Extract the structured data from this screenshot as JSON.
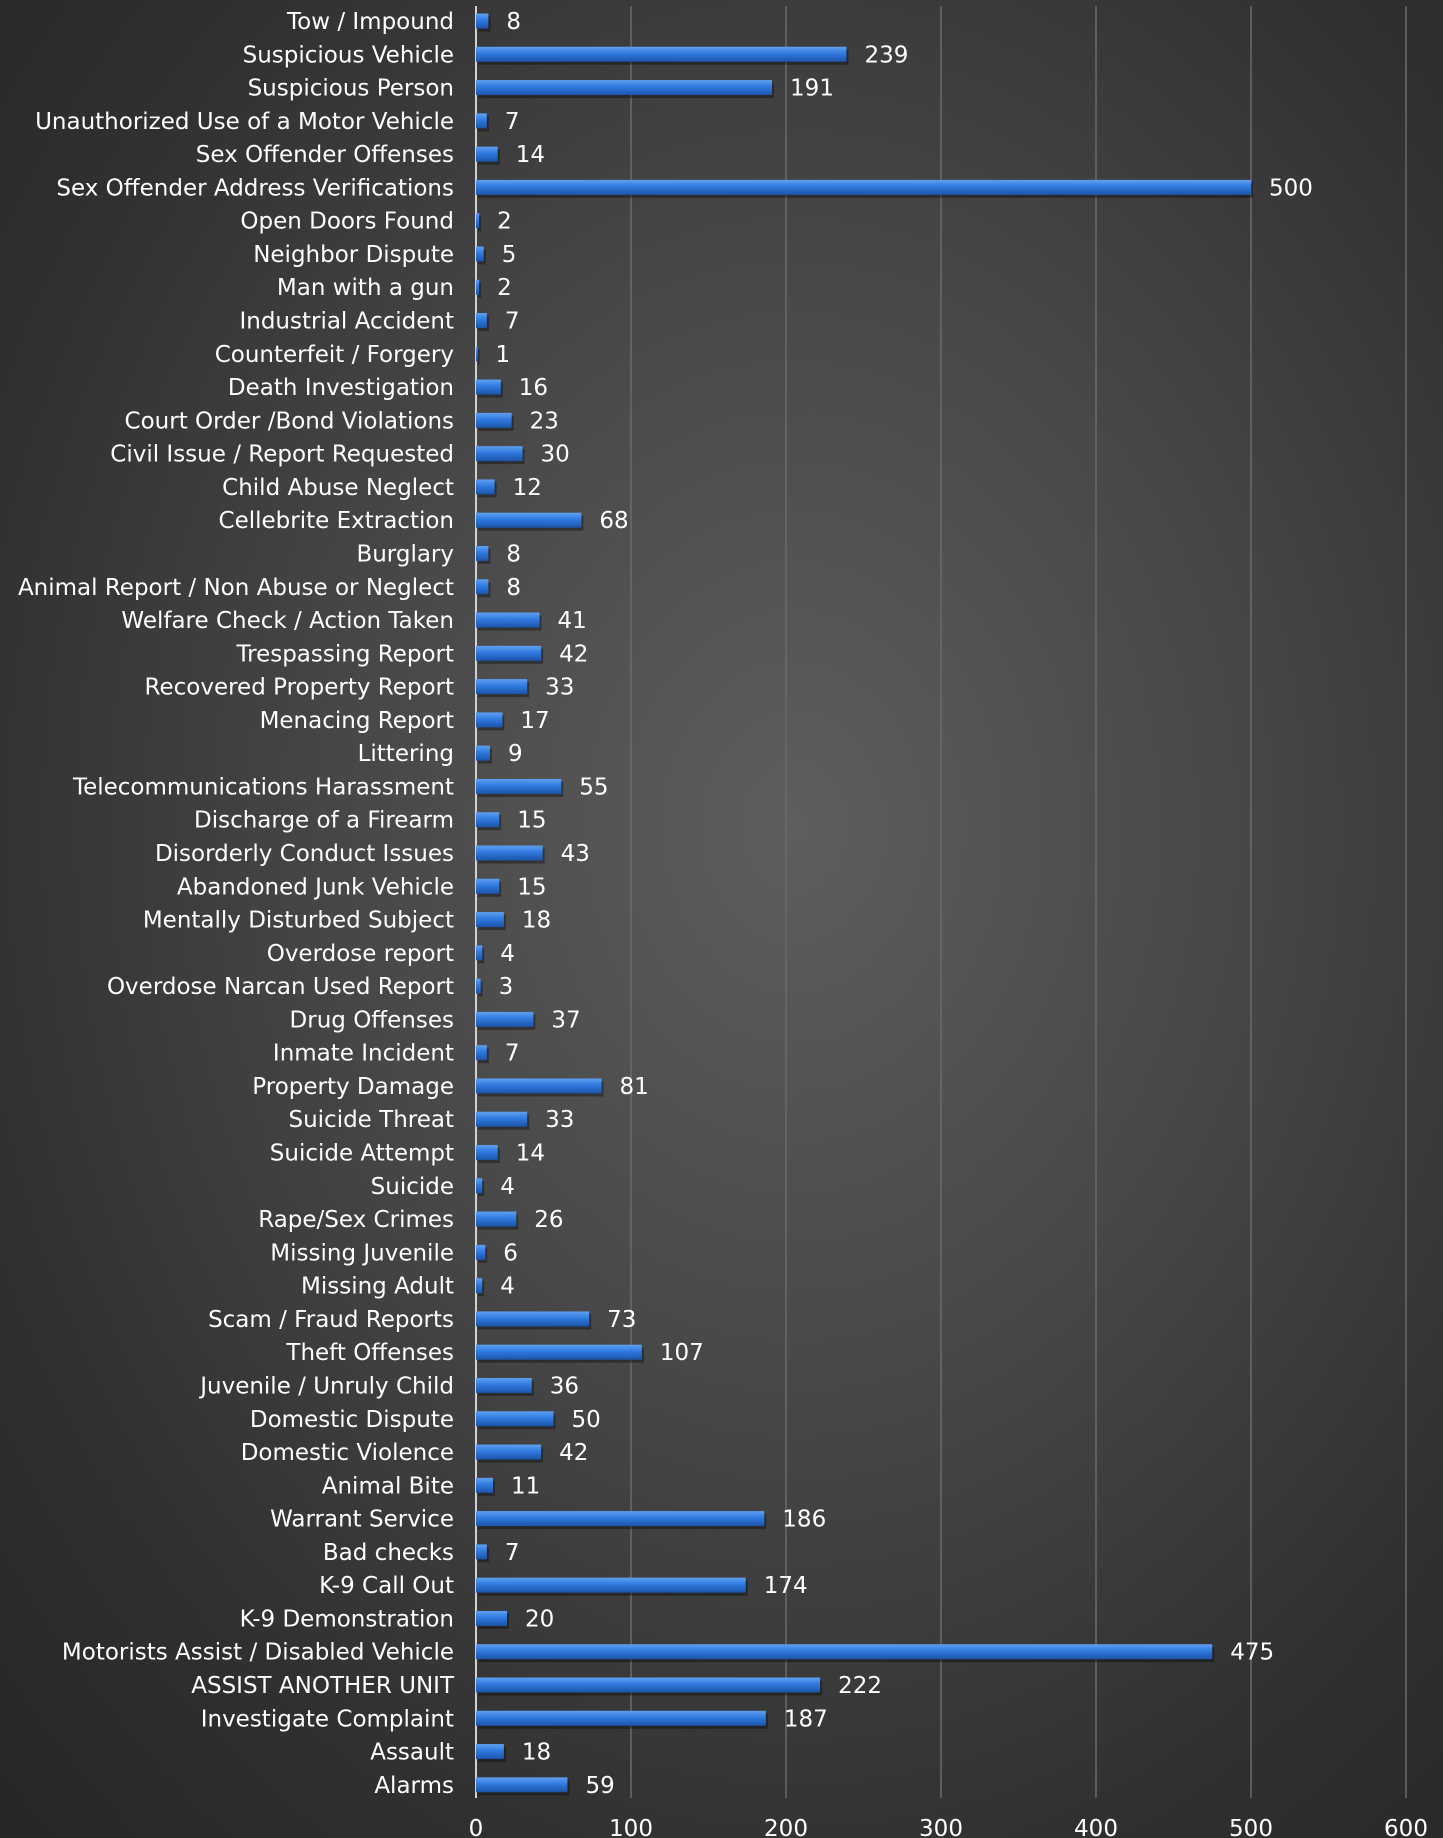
{
  "chart_data": {
    "type": "bar",
    "orientation": "horizontal",
    "title": "",
    "xlabel": "",
    "ylabel": "",
    "xlim": [
      0,
      600
    ],
    "x_ticks": [
      "0",
      "100",
      "200",
      "300",
      "400",
      "500",
      "600"
    ],
    "grid": true,
    "legend": "none",
    "bar_color": "#2f7ae0",
    "categories": [
      "Tow / Impound",
      "Suspicious Vehicle",
      "Suspicious Person",
      "Unauthorized Use of a Motor Vehicle",
      "Sex Offender Offenses",
      "Sex Offender Address Verifications",
      "Open Doors Found",
      "Neighbor Dispute",
      "Man with a gun",
      "Industrial Accident",
      "Counterfeit / Forgery",
      "Death Investigation",
      "Court Order /Bond Violations",
      "Civil Issue / Report Requested",
      "Child Abuse Neglect",
      "Cellebrite Extraction",
      "Burglary",
      "Animal Report / Non Abuse or Neglect",
      "Welfare Check / Action Taken",
      "Trespassing Report",
      "Recovered Property Report",
      "Menacing Report",
      "Littering",
      "Telecommunications Harassment",
      "Discharge of a Firearm",
      "Disorderly Conduct Issues",
      "Abandoned Junk Vehicle",
      "Mentally Disturbed Subject",
      "Overdose report",
      "Overdose Narcan Used Report",
      "Drug Offenses",
      "Inmate Incident",
      "Property Damage",
      "Suicide Threat",
      "Suicide Attempt",
      "Suicide",
      "Rape/Sex Crimes",
      "Missing Juvenile",
      "Missing Adult",
      "Scam / Fraud Reports",
      "Theft Offenses",
      "Juvenile / Unruly Child",
      "Domestic Dispute",
      "Domestic Violence",
      "Animal Bite",
      "Warrant Service",
      "Bad checks",
      "K-9 Call Out",
      "K-9 Demonstration",
      "Motorists Assist / Disabled Vehicle",
      "ASSIST ANOTHER UNIT",
      "Investigate Complaint",
      "Assault",
      "Alarms"
    ],
    "values": [
      8,
      239,
      191,
      7,
      14,
      500,
      2,
      5,
      2,
      7,
      1,
      16,
      23,
      30,
      12,
      68,
      8,
      8,
      41,
      42,
      33,
      17,
      9,
      55,
      15,
      43,
      15,
      18,
      4,
      3,
      37,
      7,
      81,
      33,
      14,
      4,
      26,
      6,
      4,
      73,
      107,
      36,
      50,
      42,
      11,
      186,
      7,
      174,
      20,
      475,
      222,
      187,
      18,
      59
    ]
  }
}
